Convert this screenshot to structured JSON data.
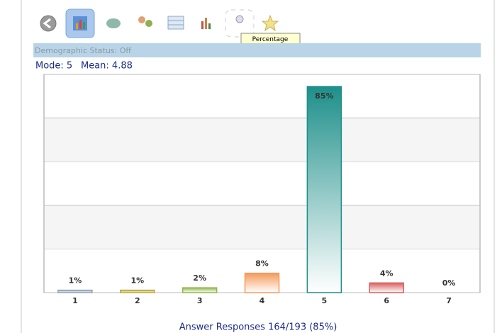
{
  "tooltip": "Percentage",
  "status": "Demographic Status: Off",
  "mode": "Mode: 5",
  "mean": "Mean: 4.88",
  "chart_data": {
    "type": "bar",
    "categories": [
      "1",
      "2",
      "3",
      "4",
      "5",
      "6",
      "7"
    ],
    "values": [
      1,
      1,
      2,
      8,
      85,
      4,
      0
    ],
    "value_labels": [
      "1%",
      "1%",
      "2%",
      "8%",
      "85%",
      "4%",
      "0%"
    ],
    "colors": [
      "#8fa3b8",
      "#b8a83a",
      "#8fb84a",
      "#f59a5a",
      "#1e8f8a",
      "#d9605e",
      "#9a9a9a"
    ],
    "x_label": "Answer Responses 164/193 (85%)",
    "ylim": [
      0,
      90
    ],
    "yticks": [
      0,
      18,
      36,
      54,
      72,
      90
    ],
    "grid": true
  }
}
